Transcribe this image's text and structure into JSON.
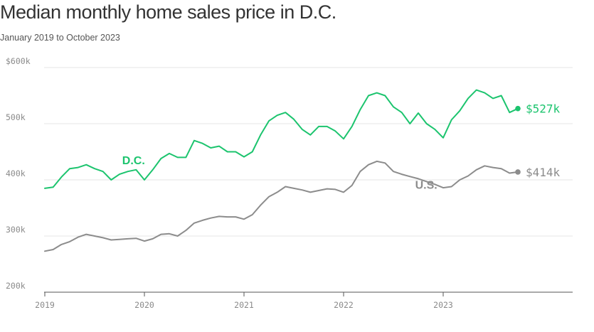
{
  "title": "Median monthly home sales price in D.C.",
  "subtitle": "January 2019 to October 2023",
  "colors": {
    "dc": "#1cc46e",
    "us": "#8c8c8c",
    "grid": "#e6e6e6",
    "axis": "#555555"
  },
  "chart_data": {
    "type": "line",
    "title": "Median monthly home sales price in D.C.",
    "subtitle": "January 2019 to October 2023",
    "x_start": "2019-01",
    "x_end": "2023-10",
    "x_ticks": [
      "2019",
      "2020",
      "2021",
      "2022",
      "2023"
    ],
    "ylim": [
      200000,
      600000
    ],
    "y_ticks": [
      {
        "value": 200000,
        "label": "200k"
      },
      {
        "value": 300000,
        "label": "300k"
      },
      {
        "value": 400000,
        "label": "400k"
      },
      {
        "value": 500000,
        "label": "500k"
      },
      {
        "value": 600000,
        "label": "$600k"
      }
    ],
    "grid": true,
    "series": [
      {
        "name": "D.C.",
        "key": "dc",
        "end_label": "$527k",
        "values": [
          385000,
          387000,
          405000,
          420000,
          422000,
          427000,
          420000,
          415000,
          400000,
          410000,
          415000,
          418000,
          400000,
          418000,
          438000,
          447000,
          440000,
          440000,
          470000,
          465000,
          457000,
          460000,
          450000,
          450000,
          441000,
          450000,
          480000,
          505000,
          515000,
          520000,
          508000,
          490000,
          480000,
          495000,
          495000,
          487000,
          473000,
          495000,
          525000,
          550000,
          555000,
          550000,
          530000,
          520000,
          500000,
          519000,
          500000,
          490000,
          475000,
          507000,
          523000,
          545000,
          560000,
          555000,
          545000,
          550000,
          520000,
          527000
        ]
      },
      {
        "name": "U.S.",
        "key": "us",
        "end_label": "$414k",
        "values": [
          273000,
          276000,
          285000,
          290000,
          298000,
          303000,
          300000,
          297000,
          293000,
          294000,
          295000,
          296000,
          291000,
          295000,
          303000,
          304000,
          300000,
          310000,
          323000,
          328000,
          332000,
          335000,
          334000,
          334000,
          330000,
          338000,
          355000,
          370000,
          378000,
          388000,
          385000,
          382000,
          378000,
          381000,
          384000,
          383000,
          378000,
          390000,
          415000,
          427000,
          433000,
          430000,
          415000,
          410000,
          406000,
          402000,
          397000,
          392000,
          386000,
          388000,
          400000,
          407000,
          418000,
          425000,
          422000,
          420000,
          412000,
          414000
        ]
      }
    ]
  }
}
